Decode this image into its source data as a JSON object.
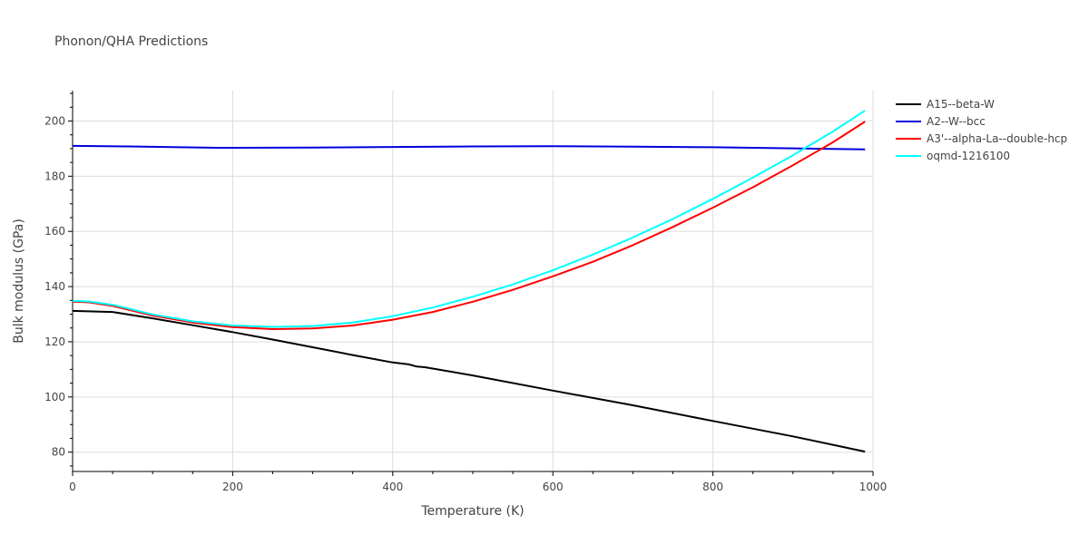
{
  "chart_data": {
    "type": "line",
    "title": "Phonon/QHA Predictions",
    "xlabel": "Temperature (K)",
    "ylabel": "Bulk modulus (GPa)",
    "xlim": [
      0,
      1000
    ],
    "ylim": [
      73,
      211
    ],
    "xticks": [
      0,
      200,
      400,
      600,
      800,
      1000
    ],
    "yticks": [
      80,
      100,
      120,
      140,
      160,
      180,
      200
    ],
    "grid": true,
    "legend_position": "top-right",
    "series": [
      {
        "name": "A15--beta-W",
        "color": "#000000",
        "x": [
          0,
          50,
          100,
          150,
          200,
          250,
          300,
          350,
          400,
          420,
          430,
          440,
          500,
          600,
          700,
          800,
          900,
          990
        ],
        "y": [
          131.2,
          130.8,
          128.5,
          126.0,
          123.5,
          120.8,
          118.0,
          115.2,
          112.5,
          111.8,
          111.0,
          110.8,
          107.8,
          102.3,
          97.0,
          91.3,
          85.7,
          80.2
        ]
      },
      {
        "name": "A2--W--bcc",
        "color": "#0000dd",
        "x": [
          0,
          70,
          180,
          300,
          400,
          500,
          600,
          700,
          800,
          900,
          990
        ],
        "y": [
          191.0,
          190.8,
          190.3,
          190.4,
          190.6,
          190.8,
          190.9,
          190.7,
          190.5,
          190.1,
          189.7
        ]
      },
      {
        "name": "A3'--alpha-La--double-hcp",
        "color": "#ff0000",
        "x": [
          0,
          20,
          50,
          100,
          150,
          200,
          250,
          300,
          350,
          400,
          450,
          500,
          550,
          600,
          650,
          700,
          750,
          800,
          850,
          900,
          950,
          990
        ],
        "y": [
          134.5,
          134.3,
          133.0,
          129.5,
          127.0,
          125.3,
          124.6,
          124.8,
          125.9,
          128.0,
          130.8,
          134.5,
          138.8,
          143.7,
          149.0,
          155.0,
          161.6,
          168.6,
          176.0,
          184.0,
          192.3,
          199.8
        ]
      },
      {
        "name": "oqmd-1216100",
        "color": "#00ffff",
        "x": [
          0,
          20,
          50,
          100,
          150,
          200,
          250,
          300,
          350,
          400,
          450,
          500,
          550,
          600,
          650,
          700,
          750,
          800,
          850,
          900,
          950,
          990
        ],
        "y": [
          134.8,
          134.6,
          133.4,
          129.9,
          127.4,
          125.9,
          125.4,
          125.7,
          127.0,
          129.3,
          132.4,
          136.3,
          140.8,
          145.9,
          151.6,
          157.8,
          164.5,
          171.8,
          179.5,
          187.6,
          196.2,
          203.8
        ]
      }
    ]
  }
}
